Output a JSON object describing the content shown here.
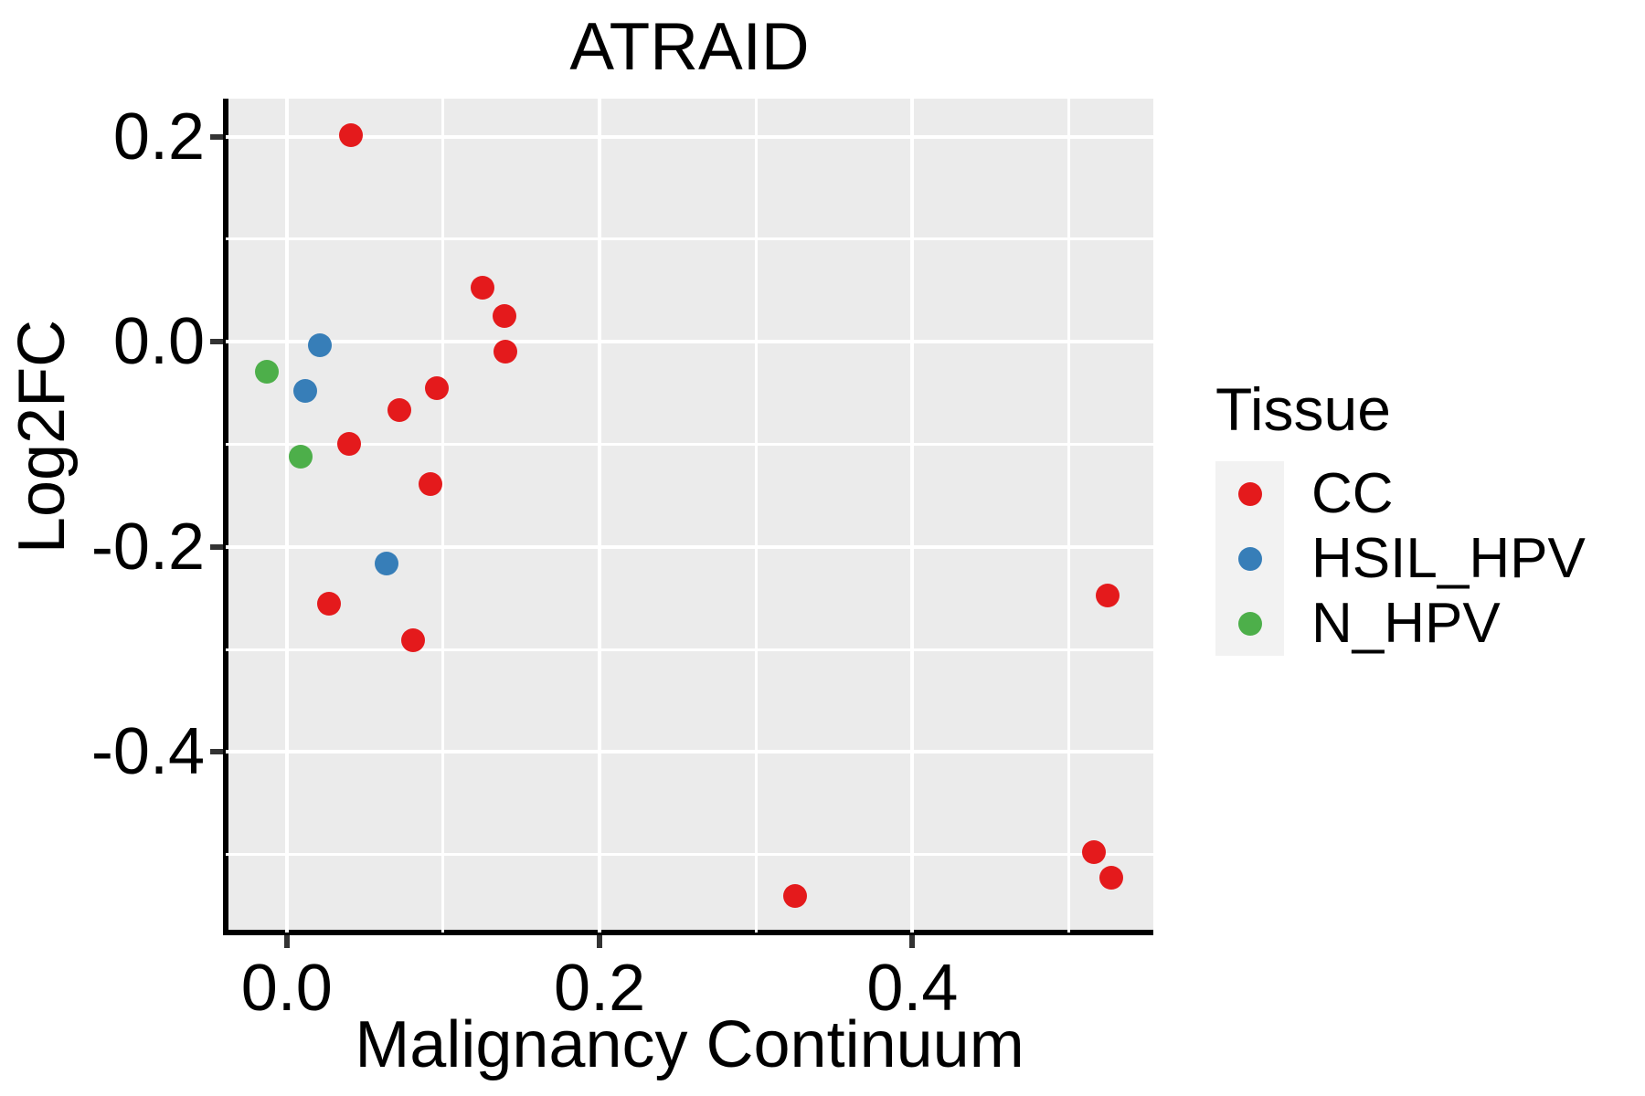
{
  "title": "ATRAID",
  "panel": {
    "background": "#EBEBEB",
    "gridline_color": "#FFFFFF",
    "axis_line_color": "#000000",
    "legend_key_background": "#F2F2F2"
  },
  "tick_labels": {
    "x": [
      "0.0",
      "0.2",
      "0.4"
    ],
    "y": [
      "0.2",
      "0.0",
      "-0.2",
      "-0.4"
    ]
  },
  "chart_data": {
    "type": "scatter",
    "title": "ATRAID",
    "xlabel": "Malignancy Continuum",
    "ylabel": "Log2FC",
    "legend_title": "Tissue",
    "legend_position": "right",
    "grid": "on",
    "xlim": [
      -0.039,
      0.554
    ],
    "ylim": [
      -0.576,
      0.237
    ],
    "x_ticks": [
      0.0,
      0.2,
      0.4
    ],
    "y_ticks": [
      0.2,
      0.0,
      -0.2,
      -0.4
    ],
    "x_minor": [
      0.1,
      0.3,
      0.5
    ],
    "y_minor": [
      0.1,
      -0.1,
      -0.3,
      -0.5
    ],
    "series": [
      {
        "name": "CC",
        "color": "#E41A1C",
        "points": [
          [
            0.041,
            0.201
          ],
          [
            0.125,
            0.053
          ],
          [
            0.139,
            0.025
          ],
          [
            0.14,
            -0.01
          ],
          [
            0.096,
            -0.045
          ],
          [
            0.072,
            -0.067
          ],
          [
            0.04,
            -0.1
          ],
          [
            0.092,
            -0.139
          ],
          [
            0.027,
            -0.255
          ],
          [
            0.081,
            -0.291
          ],
          [
            0.325,
            -0.54
          ],
          [
            0.516,
            -0.498
          ],
          [
            0.527,
            -0.523
          ],
          [
            0.525,
            -0.247
          ]
        ]
      },
      {
        "name": "HSIL_HPV",
        "color": "#377EB8",
        "points": [
          [
            0.021,
            -0.003
          ],
          [
            0.012,
            -0.048
          ],
          [
            0.064,
            -0.216
          ]
        ]
      },
      {
        "name": "N_HPV",
        "color": "#4DAF4A",
        "points": [
          [
            -0.013,
            -0.029
          ],
          [
            0.009,
            -0.112
          ]
        ]
      }
    ]
  }
}
